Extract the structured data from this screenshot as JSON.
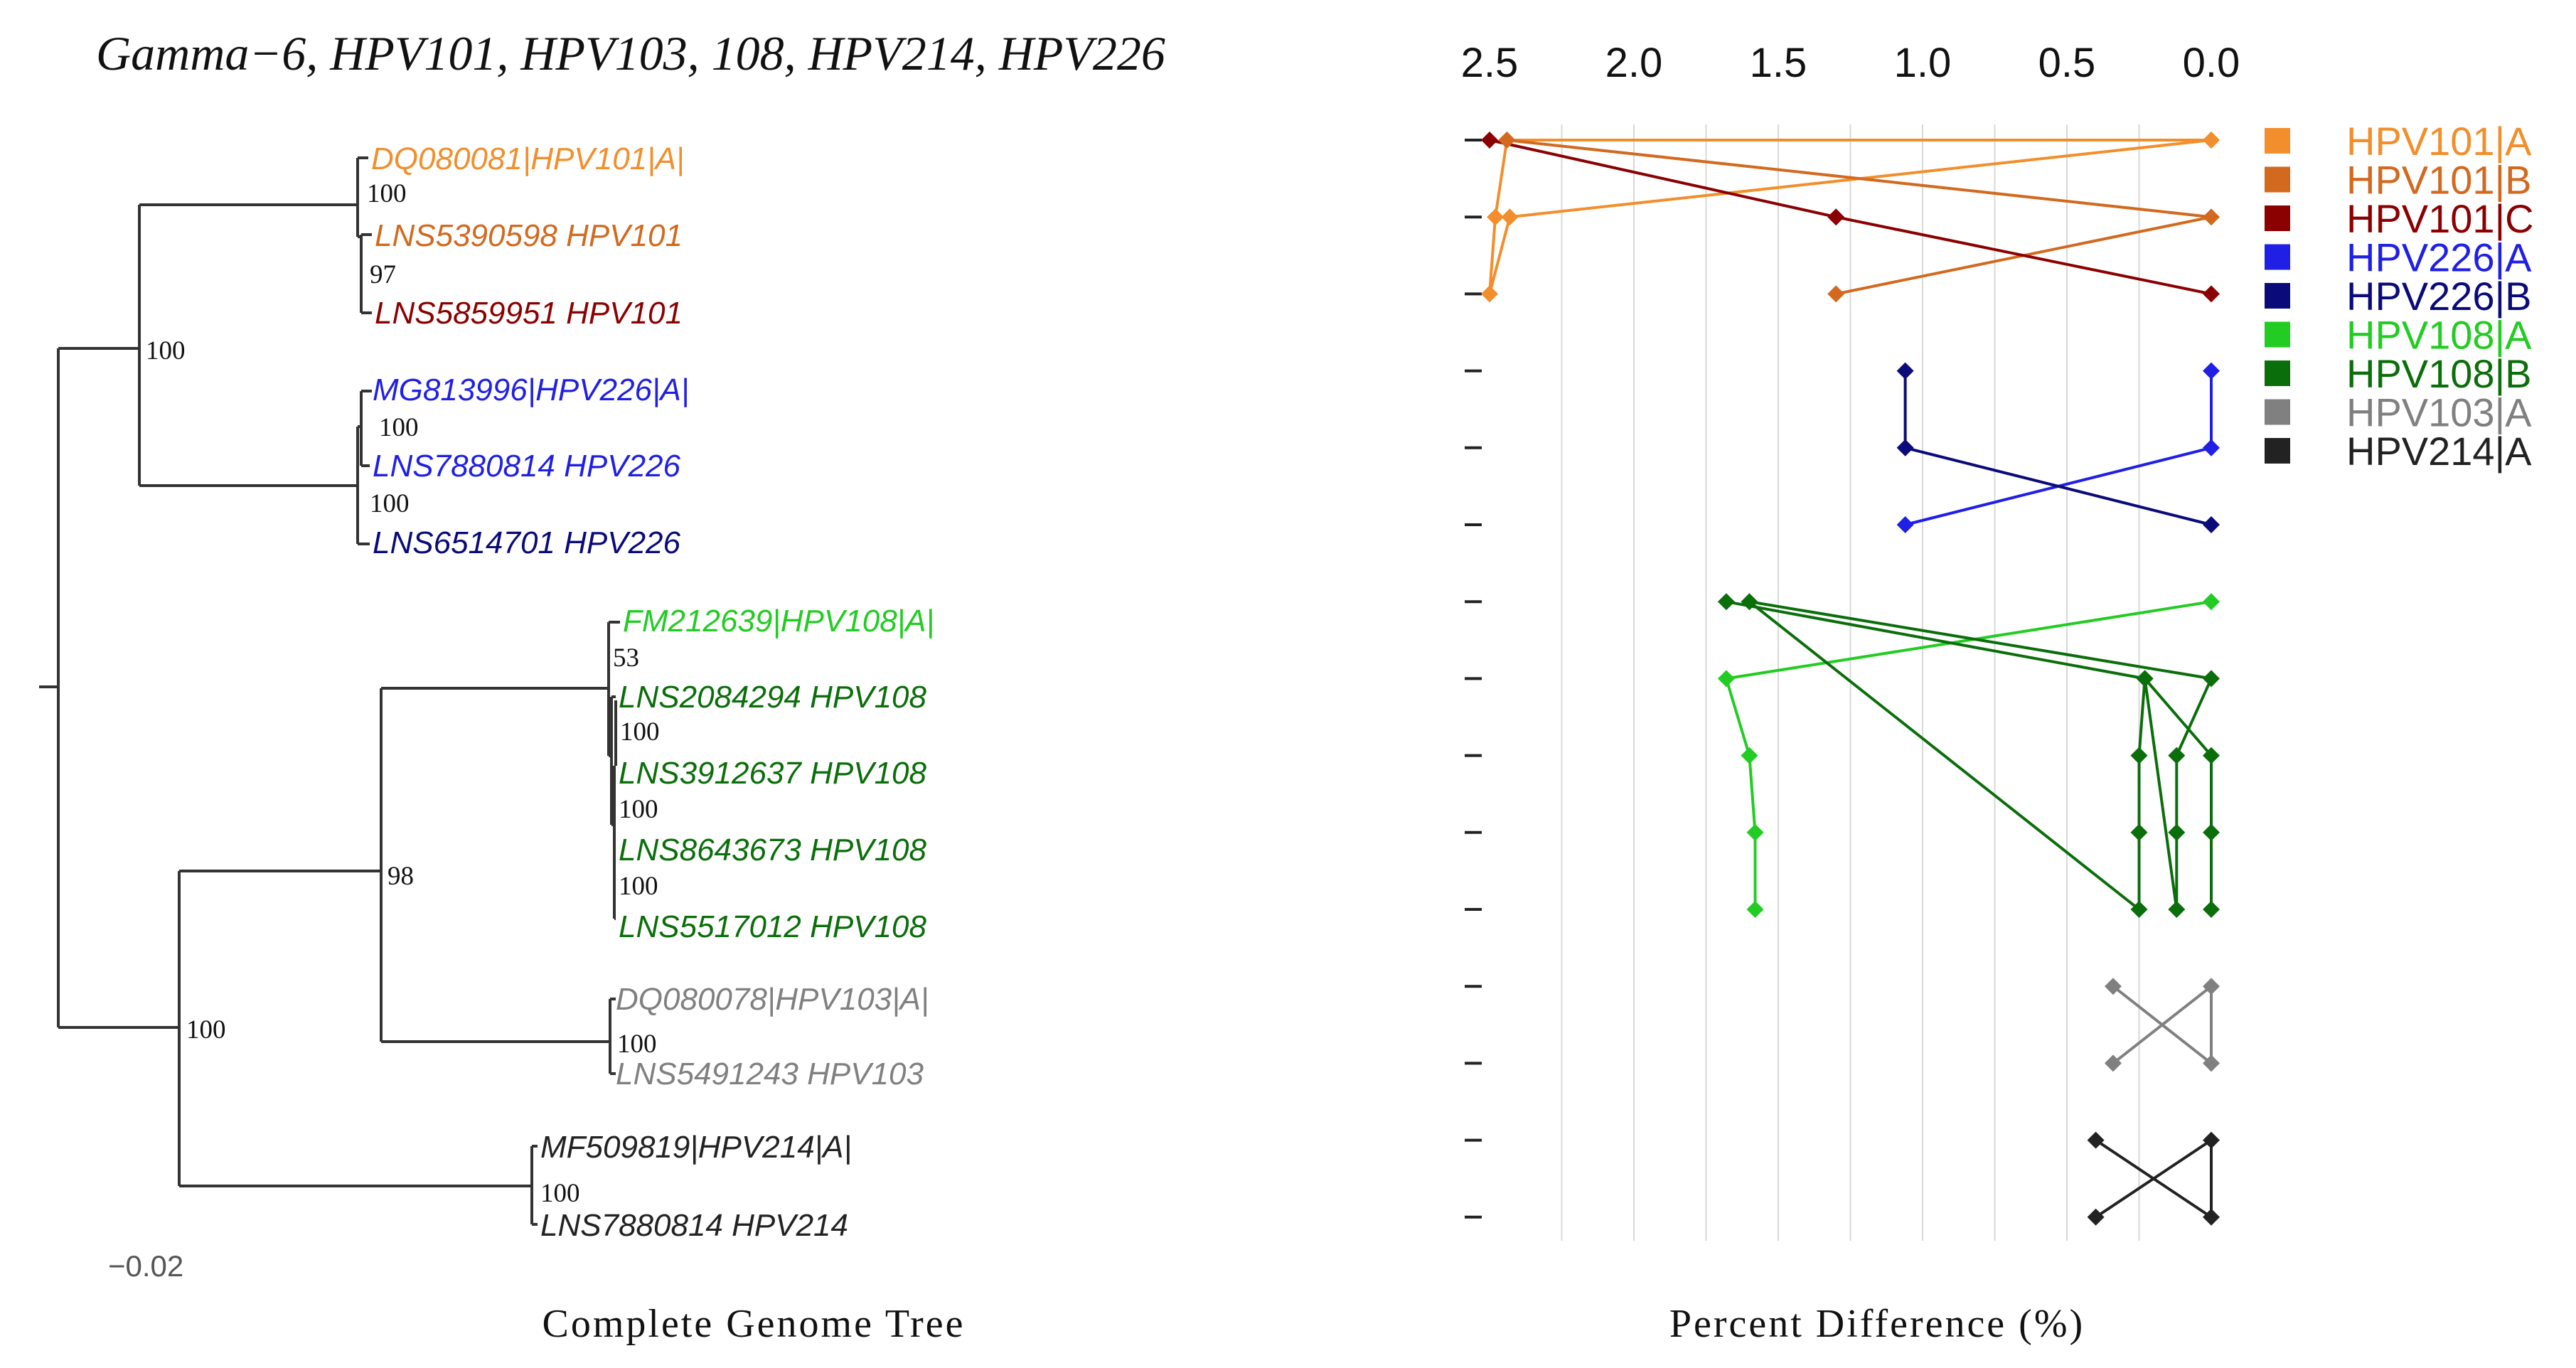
{
  "title": "Gamma−6, HPV101, HPV103, 108, HPV214, HPV226",
  "tree": {
    "label": "Complete Genome Tree",
    "scale_label": "−0.02",
    "taxa": [
      {
        "label": "DQ080081|HPV101|A|",
        "color": "#f28e2b"
      },
      {
        "label": "LNS5390598 HPV101",
        "color": "#d2691e"
      },
      {
        "label": "LNS5859951 HPV101",
        "color": "#8b0000"
      },
      {
        "label": "MG813996|HPV226|A|",
        "color": "#1f1fe6"
      },
      {
        "label": "LNS7880814 HPV226",
        "color": "#1f1fe6"
      },
      {
        "label": "LNS6514701 HPV226",
        "color": "#0a0a7a"
      },
      {
        "label": "FM212639|HPV108|A|",
        "color": "#22cc22"
      },
      {
        "label": "LNS2084294 HPV108",
        "color": "#0a6e0a"
      },
      {
        "label": "LNS3912637 HPV108",
        "color": "#0a6e0a"
      },
      {
        "label": "LNS8643673 HPV108",
        "color": "#0a6e0a"
      },
      {
        "label": "LNS5517012 HPV108",
        "color": "#0a6e0a"
      },
      {
        "label": "DQ080078|HPV103|A|",
        "color": "#808080"
      },
      {
        "label": "LNS5491243 HPV103",
        "color": "#808080"
      },
      {
        "label": "MF509819|HPV214|A|",
        "color": "#222222"
      },
      {
        "label": "LNS7880814 HPV214",
        "color": "#222222"
      }
    ],
    "bootstrap": [
      "100",
      "97",
      "100",
      "100",
      "100",
      "100",
      "98",
      "53",
      "100",
      "100",
      "100",
      "100",
      "100"
    ]
  },
  "chart_data": {
    "type": "line",
    "xlabel": "Percent Difference (%)",
    "ylabel": "",
    "xlim": [
      2.5,
      0.0
    ],
    "xticks": [
      "2.5",
      "2.0",
      "1.5",
      "1.0",
      "0.5",
      "0.0"
    ],
    "xtick_values": [
      2.5,
      2.0,
      1.5,
      1.0,
      0.5,
      0.0
    ],
    "grid": true,
    "legend_position": "right",
    "series": [
      {
        "name": "HPV101|A",
        "color": "#f28e2b",
        "points": [
          [
            0.0,
            1
          ],
          [
            2.44,
            1
          ],
          [
            2.48,
            2
          ],
          [
            2.5,
            3
          ],
          [
            2.43,
            2
          ],
          [
            0.0,
            1
          ]
        ]
      },
      {
        "name": "HPV101|B",
        "color": "#d2691e",
        "points": [
          [
            2.44,
            1
          ],
          [
            0.0,
            2
          ],
          [
            1.3,
            3
          ]
        ]
      },
      {
        "name": "HPV101|C",
        "color": "#8b0000",
        "points": [
          [
            2.5,
            1
          ],
          [
            1.3,
            2
          ],
          [
            0.0,
            3
          ]
        ]
      },
      {
        "name": "HPV226|A",
        "color": "#1f1fe6",
        "points": [
          [
            0.0,
            4
          ],
          [
            0.0,
            5
          ],
          [
            1.06,
            6
          ]
        ]
      },
      {
        "name": "HPV226|B",
        "color": "#0a0a7a",
        "points": [
          [
            1.06,
            4
          ],
          [
            1.06,
            5
          ],
          [
            0.0,
            6
          ]
        ]
      },
      {
        "name": "HPV108|A",
        "color": "#22cc22",
        "points": [
          [
            0.0,
            7
          ],
          [
            1.68,
            8
          ],
          [
            1.6,
            9
          ],
          [
            1.58,
            10
          ],
          [
            1.58,
            11
          ]
        ]
      },
      {
        "name": "HPV108|B",
        "color": "#0a6e0a",
        "points": [
          [
            1.68,
            7
          ],
          [
            0.23,
            8
          ],
          [
            0.25,
            9
          ],
          [
            0.25,
            10
          ],
          [
            0.25,
            11
          ],
          [
            1.6,
            7
          ],
          [
            0.0,
            8
          ],
          [
            0.12,
            9
          ],
          [
            0.12,
            10
          ],
          [
            0.12,
            11
          ],
          [
            0.23,
            8
          ],
          [
            0.0,
            9
          ],
          [
            0.0,
            10
          ],
          [
            0.0,
            11
          ]
        ]
      },
      {
        "name": "HPV103|A",
        "color": "#808080",
        "points": [
          [
            0.34,
            12
          ],
          [
            0.0,
            13
          ],
          [
            0.0,
            12
          ],
          [
            0.34,
            13
          ]
        ]
      },
      {
        "name": "HPV214|A",
        "color": "#222222",
        "points": [
          [
            0.4,
            14
          ],
          [
            0.0,
            15
          ],
          [
            0.0,
            14
          ],
          [
            0.4,
            15
          ]
        ]
      }
    ],
    "rows": [
      1,
      2,
      3,
      4,
      5,
      6,
      7,
      8,
      9,
      10,
      11,
      12,
      13,
      14,
      15
    ]
  }
}
